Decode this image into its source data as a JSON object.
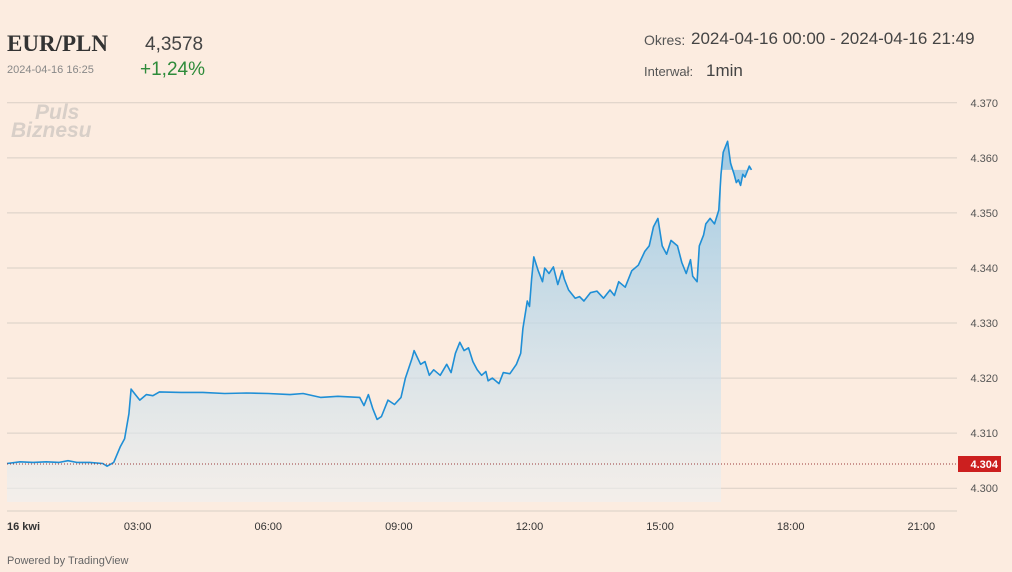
{
  "header": {
    "symbol": "EUR/PLN",
    "price": "4,3578",
    "datetime": "2024-04-16 16:25",
    "change": "+1,24%",
    "period_label": "Okres:",
    "period_value": "2024-04-16 00:00 - 2024-04-16 21:49",
    "interval_label": "Interwał:",
    "interval_value": "1min"
  },
  "branding": {
    "logo_line1": "Puls",
    "logo_line2": "Biznesu",
    "powered_by": "Powered by TradingView"
  },
  "colors": {
    "line": "#1f8fd6",
    "price_marker": "#cc1f1f",
    "background": "#fcece0"
  },
  "chart_data": {
    "type": "area",
    "title": "",
    "xlabel": "",
    "ylabel": "",
    "ylim": [
      4.2975,
      4.3705
    ],
    "y_ticks": [
      "4.300",
      "4.310",
      "4.320",
      "4.330",
      "4.340",
      "4.350",
      "4.360",
      "4.370"
    ],
    "x_tick_labels": [
      {
        "hour": 0,
        "label": "16 kwi"
      },
      {
        "hour": 3,
        "label": "03:00"
      },
      {
        "hour": 6,
        "label": "06:00"
      },
      {
        "hour": 9,
        "label": "09:00"
      },
      {
        "hour": 12,
        "label": "12:00"
      },
      {
        "hour": 15,
        "label": "15:00"
      },
      {
        "hour": 18,
        "label": "18:00"
      },
      {
        "hour": 21,
        "label": "21:00"
      }
    ],
    "x_range_hours": [
      0,
      21.82
    ],
    "reference_line": {
      "value": 4.3044,
      "label": "4.304"
    },
    "series": [
      {
        "points": [
          [
            0.0,
            4.3045
          ],
          [
            0.3,
            4.3048
          ],
          [
            0.6,
            4.3047
          ],
          [
            0.9,
            4.3048
          ],
          [
            1.2,
            4.3047
          ],
          [
            1.4,
            4.305
          ],
          [
            1.6,
            4.3047
          ],
          [
            1.9,
            4.3047
          ],
          [
            2.2,
            4.3045
          ],
          [
            2.3,
            4.304
          ],
          [
            2.45,
            4.3047
          ],
          [
            2.6,
            4.3075
          ],
          [
            2.7,
            4.309
          ],
          [
            2.8,
            4.3135
          ],
          [
            2.85,
            4.318
          ],
          [
            2.95,
            4.317
          ],
          [
            3.05,
            4.316
          ],
          [
            3.2,
            4.317
          ],
          [
            3.35,
            4.3168
          ],
          [
            3.5,
            4.3175
          ],
          [
            4.0,
            4.3174
          ],
          [
            4.5,
            4.3174
          ],
          [
            5.0,
            4.3172
          ],
          [
            5.5,
            4.3173
          ],
          [
            6.0,
            4.3172
          ],
          [
            6.5,
            4.317
          ],
          [
            6.8,
            4.3172
          ],
          [
            7.2,
            4.3165
          ],
          [
            7.6,
            4.3167
          ],
          [
            8.1,
            4.3165
          ],
          [
            8.2,
            4.315
          ],
          [
            8.3,
            4.317
          ],
          [
            8.4,
            4.3145
          ],
          [
            8.5,
            4.3125
          ],
          [
            8.6,
            4.313
          ],
          [
            8.75,
            4.316
          ],
          [
            8.9,
            4.3152
          ],
          [
            9.05,
            4.3165
          ],
          [
            9.15,
            4.32
          ],
          [
            9.3,
            4.3235
          ],
          [
            9.35,
            4.325
          ],
          [
            9.5,
            4.3225
          ],
          [
            9.6,
            4.323
          ],
          [
            9.7,
            4.3205
          ],
          [
            9.8,
            4.3215
          ],
          [
            9.95,
            4.3205
          ],
          [
            10.1,
            4.3225
          ],
          [
            10.2,
            4.321
          ],
          [
            10.3,
            4.3245
          ],
          [
            10.4,
            4.3265
          ],
          [
            10.5,
            4.325
          ],
          [
            10.6,
            4.3255
          ],
          [
            10.7,
            4.323
          ],
          [
            10.8,
            4.3215
          ],
          [
            10.9,
            4.3205
          ],
          [
            11.0,
            4.3212
          ],
          [
            11.05,
            4.3195
          ],
          [
            11.15,
            4.32
          ],
          [
            11.3,
            4.319
          ],
          [
            11.4,
            4.321
          ],
          [
            11.55,
            4.3208
          ],
          [
            11.7,
            4.3225
          ],
          [
            11.8,
            4.3245
          ],
          [
            11.85,
            4.329
          ],
          [
            11.95,
            4.334
          ],
          [
            12.0,
            4.333
          ],
          [
            12.05,
            4.338
          ],
          [
            12.1,
            4.342
          ],
          [
            12.2,
            4.3395
          ],
          [
            12.3,
            4.3375
          ],
          [
            12.35,
            4.34
          ],
          [
            12.45,
            4.339
          ],
          [
            12.55,
            4.3402
          ],
          [
            12.65,
            4.337
          ],
          [
            12.75,
            4.3395
          ],
          [
            12.8,
            4.338
          ],
          [
            12.9,
            4.336
          ],
          [
            13.05,
            4.3345
          ],
          [
            13.15,
            4.3348
          ],
          [
            13.25,
            4.334
          ],
          [
            13.4,
            4.3355
          ],
          [
            13.55,
            4.3358
          ],
          [
            13.7,
            4.3345
          ],
          [
            13.85,
            4.336
          ],
          [
            13.95,
            4.335
          ],
          [
            14.05,
            4.3375
          ],
          [
            14.2,
            4.3365
          ],
          [
            14.35,
            4.3395
          ],
          [
            14.5,
            4.3405
          ],
          [
            14.65,
            4.343
          ],
          [
            14.75,
            4.344
          ],
          [
            14.85,
            4.3475
          ],
          [
            14.95,
            4.349
          ],
          [
            15.05,
            4.344
          ],
          [
            15.15,
            4.3425
          ],
          [
            15.25,
            4.345
          ],
          [
            15.4,
            4.344
          ],
          [
            15.5,
            4.341
          ],
          [
            15.6,
            4.339
          ],
          [
            15.7,
            4.3415
          ],
          [
            15.75,
            4.3385
          ],
          [
            15.85,
            4.3375
          ],
          [
            15.9,
            4.344
          ],
          [
            16.0,
            4.346
          ],
          [
            16.05,
            4.348
          ],
          [
            16.15,
            4.349
          ],
          [
            16.25,
            4.348
          ],
          [
            16.35,
            4.3505
          ],
          [
            16.4,
            4.357
          ],
          [
            16.45,
            4.361
          ],
          [
            16.55,
            4.363
          ],
          [
            16.62,
            4.359
          ],
          [
            16.7,
            4.357
          ],
          [
            16.75,
            4.3555
          ],
          [
            16.8,
            4.356
          ],
          [
            16.85,
            4.355
          ],
          [
            16.9,
            4.357
          ],
          [
            16.95,
            4.3565
          ],
          [
            17.05,
            4.3585
          ],
          [
            17.1,
            4.3578
          ]
        ]
      }
    ]
  }
}
